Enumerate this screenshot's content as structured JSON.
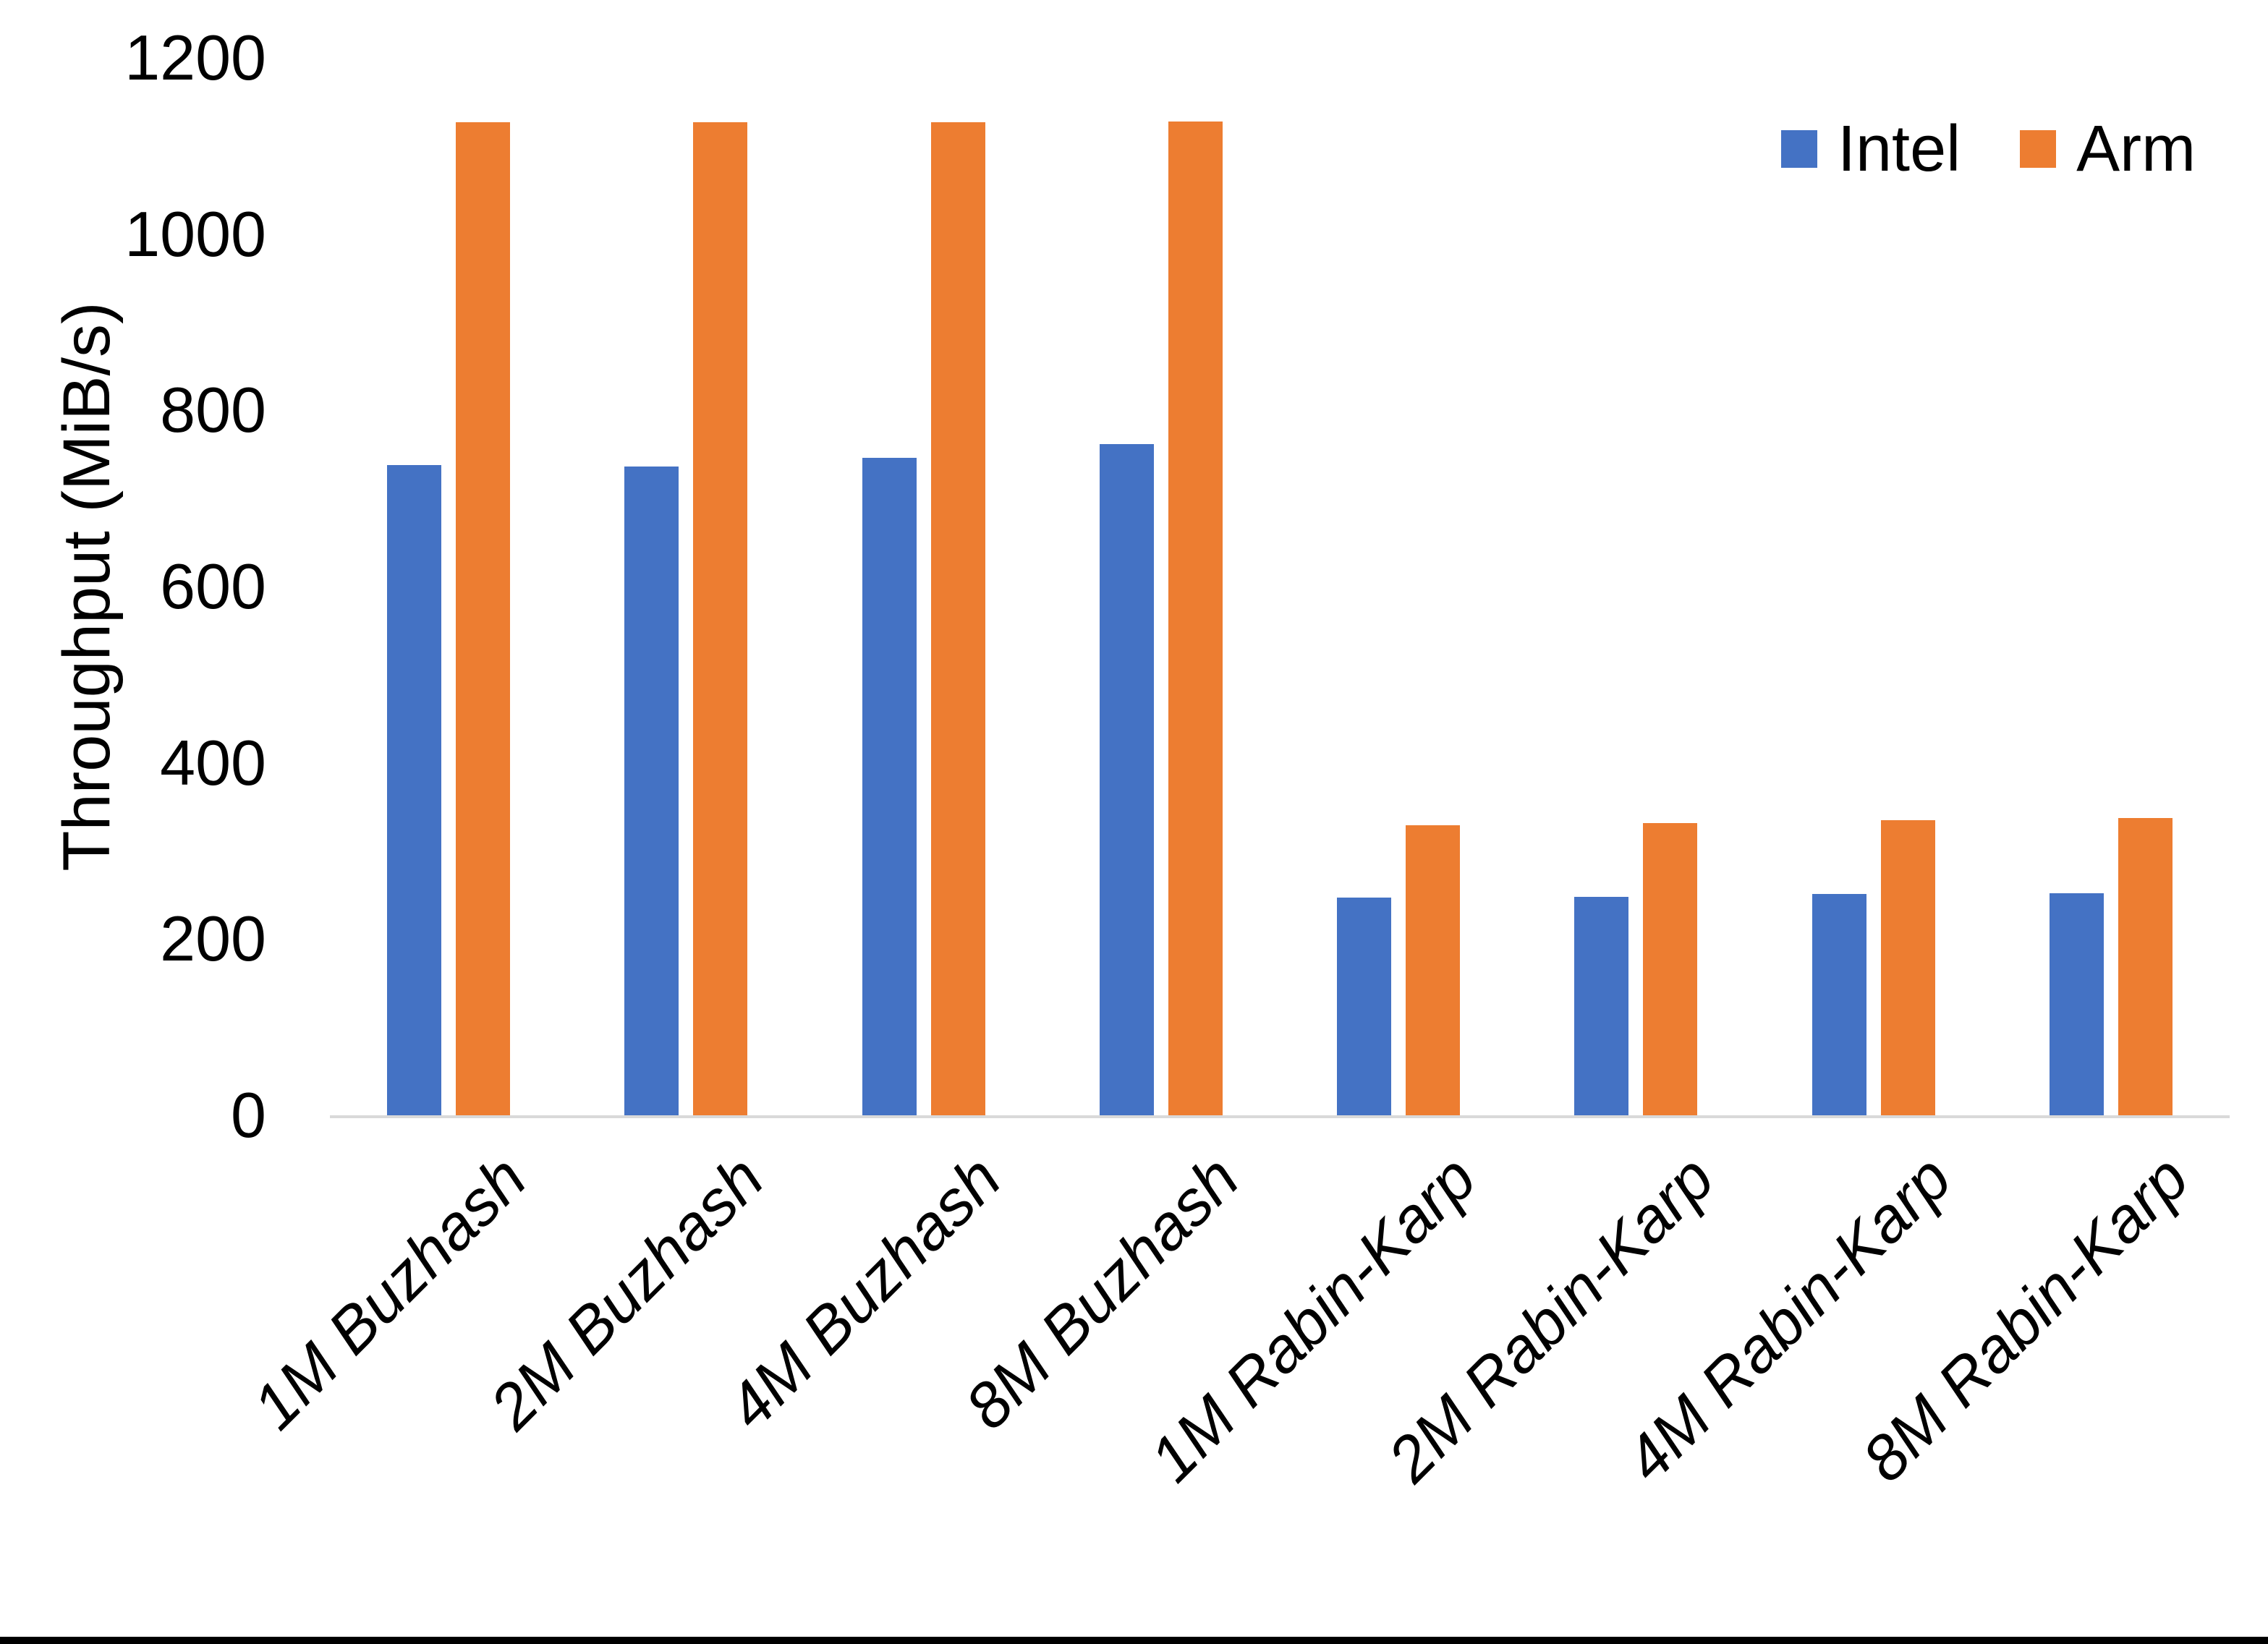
{
  "chart_data": {
    "type": "bar",
    "title": "",
    "xlabel": "",
    "ylabel": "Throughput (MiB/s)",
    "categories": [
      "1M Buzhash",
      "2M Buzhash",
      "4M Buzhash",
      "8M Buzhash",
      "1M Rabin-Karp",
      "2M Rabin-Karp",
      "4M Rabin-Karp",
      "8M Rabin-Karp"
    ],
    "series": [
      {
        "name": "Intel",
        "color": "#4472C4",
        "values": [
          738,
          736,
          746,
          762,
          247,
          248,
          251,
          252
        ]
      },
      {
        "name": "Arm",
        "color": "#ED7D31",
        "values": [
          1127,
          1127,
          1127,
          1128,
          329,
          332,
          335,
          337
        ]
      }
    ],
    "ylim": [
      0,
      1200
    ],
    "yticks": [
      0,
      200,
      400,
      600,
      800,
      1000,
      1200
    ],
    "grid": false,
    "legend_position": "top-right",
    "axis_line_color": "#D9D9D9",
    "background_color": "#FFFFFF",
    "bottom_border_color": "#000000"
  }
}
